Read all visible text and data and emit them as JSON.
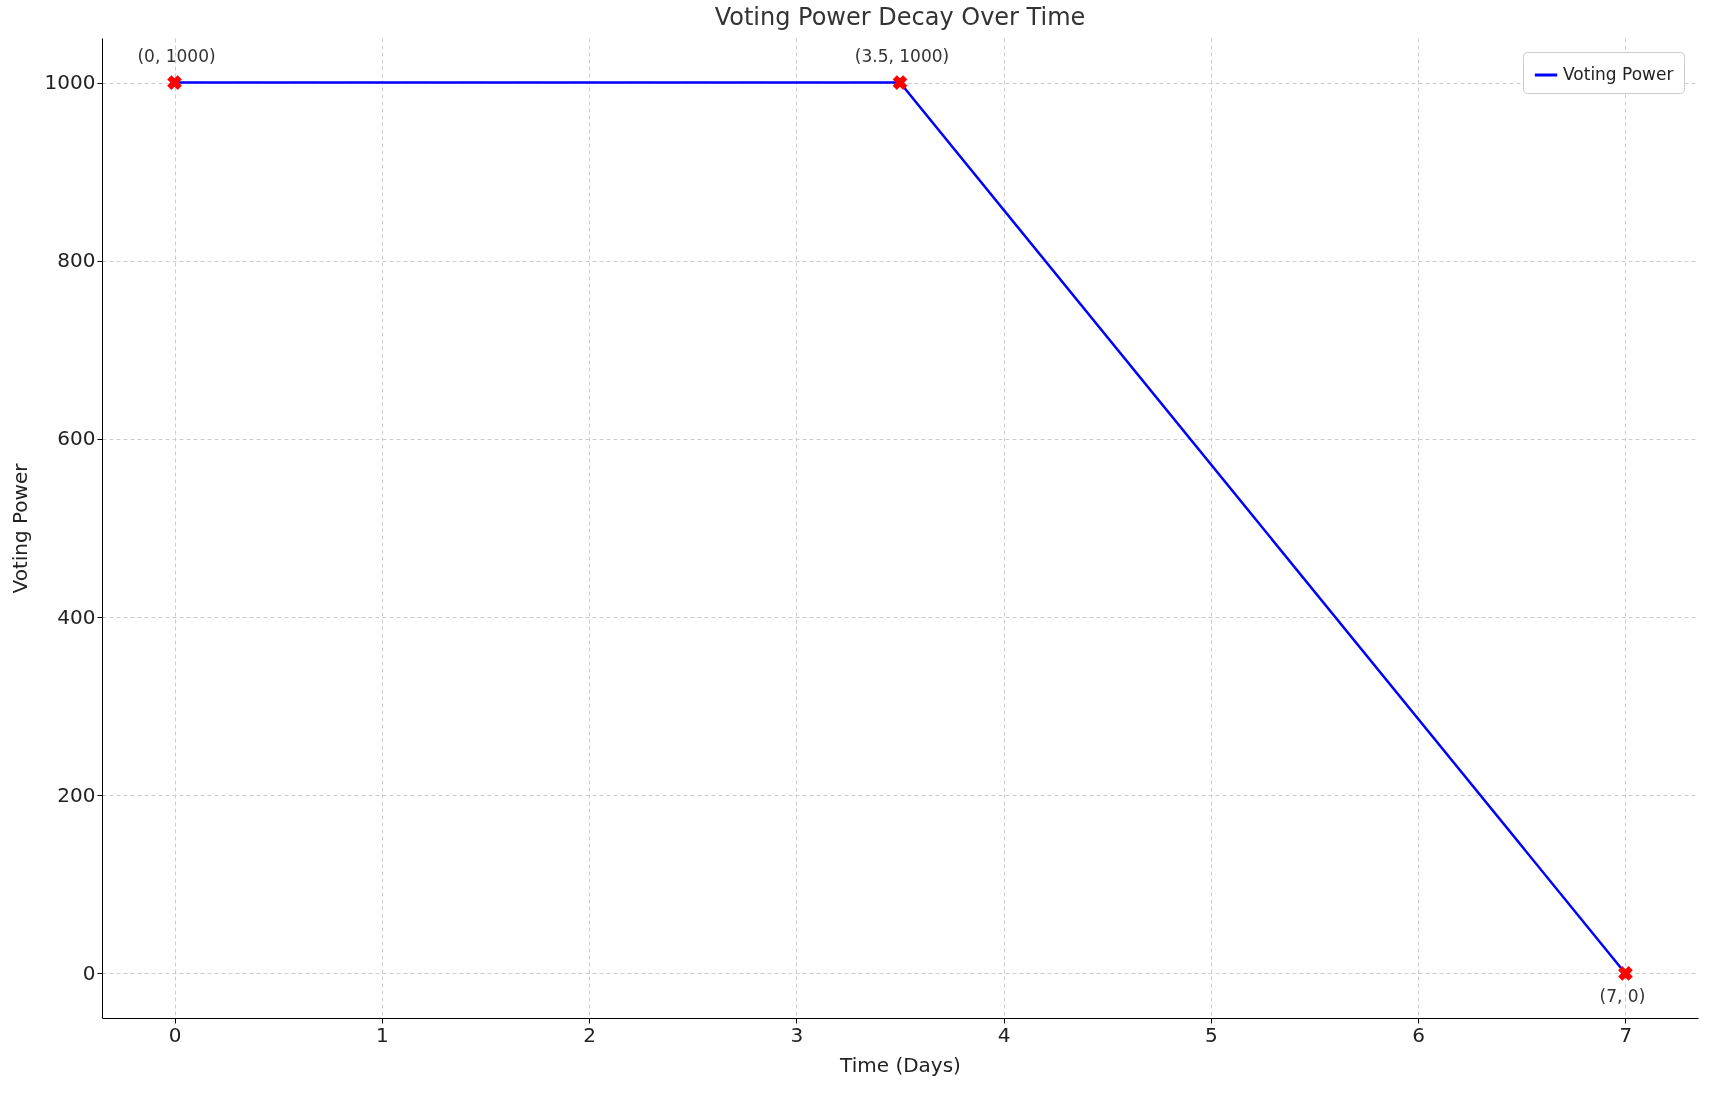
{
  "chart_data": {
    "type": "line",
    "title": "Voting Power Decay Over Time",
    "xlabel": "Time (Days)",
    "ylabel": "Voting Power",
    "x": [
      0,
      3.5,
      7
    ],
    "series": [
      {
        "name": "Voting Power",
        "type": "line",
        "color": "#0000ff",
        "values": [
          1000,
          1000,
          0
        ]
      },
      {
        "type": "scatter",
        "marker": "cross",
        "color": "#ff0000",
        "x": [
          0,
          3.5,
          7
        ],
        "values": [
          1000,
          1000,
          0
        ]
      }
    ],
    "annotations": [
      {
        "text": "(0, 1000)",
        "x": 0,
        "y": 1000
      },
      {
        "text": "(3.5, 1000)",
        "x": 3.5,
        "y": 1000
      },
      {
        "text": "(7, 0)",
        "x": 7,
        "y": 0
      }
    ],
    "xlim": [
      -0.35,
      7.35
    ],
    "xticks": [
      0,
      1,
      2,
      3,
      4,
      5,
      6,
      7
    ],
    "ylim": [
      -50,
      1050
    ],
    "yticks": [
      0,
      200,
      400,
      600,
      800,
      1000
    ],
    "grid": true,
    "legend": "top right",
    "line_style": "solid"
  }
}
